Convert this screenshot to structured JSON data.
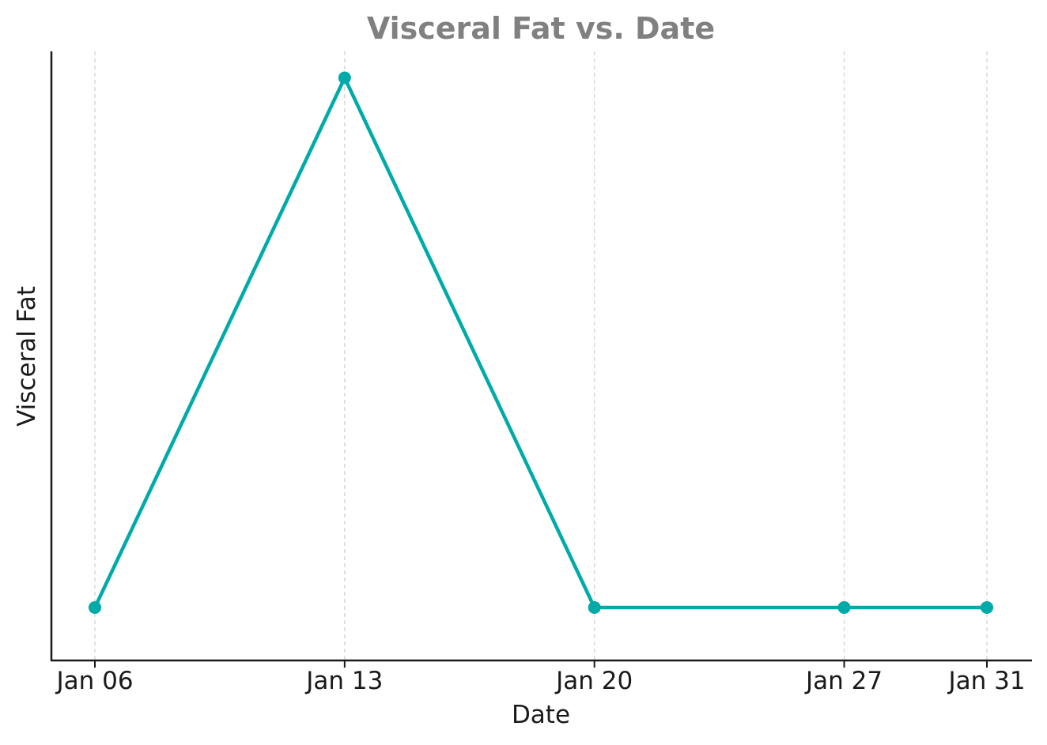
{
  "chart_data": {
    "type": "line",
    "title": "Visceral Fat vs. Date",
    "xlabel": "Date",
    "ylabel": "Visceral Fat",
    "x": [
      "Jan 06",
      "Jan 13",
      "Jan 20",
      "Jan 27",
      "Jan 31"
    ],
    "x_dates": [
      "2024-01-06",
      "2024-01-13",
      "2024-01-20",
      "2024-01-27",
      "2024-01-31"
    ],
    "series": [
      {
        "values": [
          1,
          2,
          1,
          1,
          1
        ],
        "color": "#00aaa9",
        "marker": "circle"
      }
    ],
    "ylim": [
      0.9,
      2.05
    ],
    "y_ticks_shown": false,
    "grid": "vertical dashed",
    "legend": "none"
  }
}
